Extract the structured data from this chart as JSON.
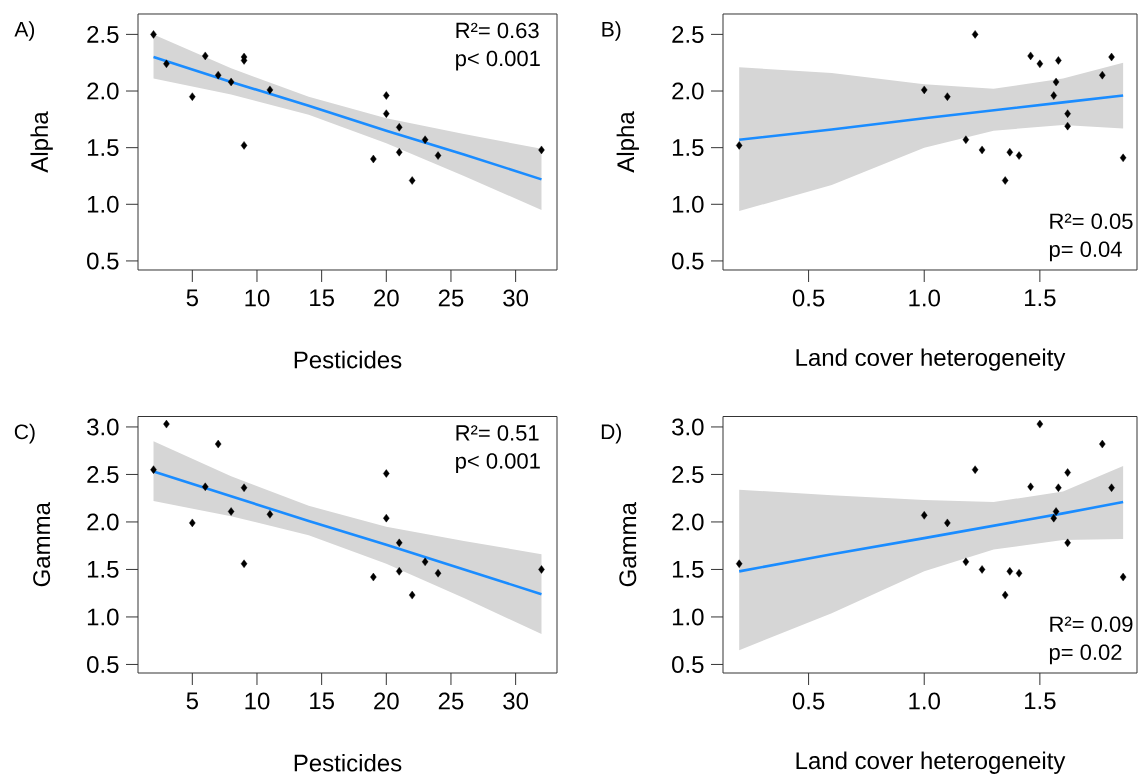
{
  "chart_data": [
    {
      "type": "scatter",
      "title": "A)",
      "xlabel": "Pesticides",
      "ylabel": "Alpha",
      "xlim": [
        0.8,
        33.2
      ],
      "ylim": [
        0.42,
        2.68
      ],
      "xticks": [
        5,
        10,
        15,
        20,
        25,
        30
      ],
      "yticks": [
        0.5,
        {
          "value": 1,
          "label": "1.0"
        },
        1.5,
        {
          "value": 2,
          "label": "2.0"
        },
        2.5
      ],
      "annotations": [
        "R²= 0.63",
        "p< 0.001"
      ],
      "series": [
        {
          "type": "line",
          "marker": "none",
          "color": "#1a8cff",
          "x": [
            2,
            8,
            14,
            20,
            26,
            32
          ],
          "values": [
            2.3,
            2.08,
            1.87,
            1.65,
            1.44,
            1.22
          ],
          "upper": [
            2.5,
            2.2,
            1.95,
            1.76,
            1.62,
            1.49
          ],
          "lower": [
            2.11,
            1.97,
            1.79,
            1.54,
            1.25,
            0.95
          ]
        },
        {
          "type": "scatter",
          "marker": "diamond",
          "color": "#000000",
          "x": [
            2,
            3,
            5,
            6,
            7,
            8,
            9,
            9,
            9,
            11,
            19,
            20,
            20,
            21,
            21,
            22,
            23,
            24,
            32
          ],
          "values": [
            2.5,
            2.24,
            1.95,
            2.31,
            2.14,
            2.08,
            2.3,
            2.27,
            1.52,
            2.01,
            1.4,
            1.96,
            1.8,
            1.68,
            1.46,
            1.21,
            1.57,
            1.43,
            1.48
          ]
        }
      ]
    },
    {
      "type": "scatter",
      "title": "B)",
      "xlabel": "Land cover heterogeneity",
      "ylabel": "Alpha",
      "xlim": [
        0.13,
        1.92
      ],
      "ylim": [
        0.42,
        2.68
      ],
      "xticks": [
        0.5,
        {
          "value": 1,
          "label": "1.0"
        },
        1.5
      ],
      "yticks": [
        0.5,
        {
          "value": 1,
          "label": "1.0"
        },
        1.5,
        {
          "value": 2,
          "label": "2.0"
        },
        2.5
      ],
      "annotations": [
        "R²= 0.05",
        "p= 0.04"
      ],
      "series": [
        {
          "type": "line",
          "marker": "none",
          "color": "#1a8cff",
          "x": [
            0.2,
            0.6,
            1.0,
            1.3,
            1.6,
            1.86
          ],
          "values": [
            1.57,
            1.66,
            1.76,
            1.83,
            1.9,
            1.96
          ],
          "upper": [
            2.21,
            2.16,
            2.06,
            2.02,
            2.11,
            2.25
          ],
          "lower": [
            0.94,
            1.17,
            1.5,
            1.65,
            1.7,
            1.67
          ]
        },
        {
          "type": "scatter",
          "marker": "diamond",
          "color": "#000000",
          "x": [
            0.2,
            1.0,
            1.1,
            1.18,
            1.22,
            1.25,
            1.35,
            1.37,
            1.41,
            1.46,
            1.5,
            1.56,
            1.57,
            1.58,
            1.62,
            1.62,
            1.77,
            1.81,
            1.86
          ],
          "values": [
            1.52,
            2.01,
            1.95,
            1.57,
            2.5,
            1.48,
            1.21,
            1.46,
            1.43,
            2.31,
            2.24,
            1.96,
            2.08,
            2.27,
            1.8,
            1.69,
            2.14,
            2.3,
            1.41
          ]
        }
      ]
    },
    {
      "type": "scatter",
      "title": "C)",
      "xlabel": "Pesticides",
      "ylabel": "Gamma",
      "xlim": [
        0.8,
        33.2
      ],
      "ylim": [
        0.41,
        3.11
      ],
      "xticks": [
        5,
        10,
        15,
        20,
        25,
        30
      ],
      "yticks": [
        0.5,
        {
          "value": 1,
          "label": "1.0"
        },
        1.5,
        {
          "value": 2,
          "label": "2.0"
        },
        2.5,
        {
          "value": 3,
          "label": "3.0"
        }
      ],
      "annotations": [
        "R²= 0.51",
        "p< 0.001"
      ],
      "series": [
        {
          "type": "line",
          "marker": "none",
          "color": "#1a8cff",
          "x": [
            2,
            8,
            14,
            20,
            26,
            32
          ],
          "values": [
            2.53,
            2.27,
            2.01,
            1.76,
            1.5,
            1.24
          ],
          "upper": [
            2.85,
            2.48,
            2.17,
            1.95,
            1.8,
            1.66
          ],
          "lower": [
            2.22,
            2.06,
            1.86,
            1.56,
            1.2,
            0.82
          ]
        },
        {
          "type": "scatter",
          "marker": "diamond",
          "color": "#000000",
          "x": [
            2,
            3,
            5,
            6,
            7,
            8,
            9,
            9,
            11,
            19,
            20,
            20,
            21,
            21,
            22,
            23,
            24,
            32
          ],
          "values": [
            2.55,
            3.03,
            1.99,
            2.37,
            2.82,
            2.11,
            2.36,
            1.56,
            2.08,
            1.42,
            2.51,
            2.04,
            1.78,
            1.48,
            1.23,
            1.58,
            1.46,
            1.5
          ]
        }
      ]
    },
    {
      "type": "scatter",
      "title": "D)",
      "xlabel": "Land cover heterogeneity",
      "ylabel": "Gamma",
      "xlim": [
        0.13,
        1.92
      ],
      "ylim": [
        0.41,
        3.11
      ],
      "xticks": [
        0.5,
        {
          "value": 1,
          "label": "1.0"
        },
        1.5
      ],
      "yticks": [
        0.5,
        {
          "value": 1,
          "label": "1.0"
        },
        1.5,
        {
          "value": 2,
          "label": "2.0"
        },
        2.5,
        {
          "value": 3,
          "label": "3.0"
        }
      ],
      "annotations": [
        "R²= 0.09",
        "p= 0.02"
      ],
      "series": [
        {
          "type": "line",
          "marker": "none",
          "color": "#1a8cff",
          "x": [
            0.2,
            0.6,
            1.0,
            1.3,
            1.6,
            1.86
          ],
          "values": [
            1.48,
            1.66,
            1.83,
            1.96,
            2.09,
            2.21
          ],
          "upper": [
            2.34,
            2.28,
            2.23,
            2.21,
            2.32,
            2.59
          ],
          "lower": [
            0.65,
            1.04,
            1.48,
            1.71,
            1.81,
            1.82
          ]
        },
        {
          "type": "scatter",
          "marker": "diamond",
          "color": "#000000",
          "x": [
            0.2,
            1.0,
            1.1,
            1.18,
            1.22,
            1.25,
            1.35,
            1.37,
            1.41,
            1.46,
            1.5,
            1.56,
            1.57,
            1.58,
            1.62,
            1.62,
            1.77,
            1.81,
            1.86
          ],
          "values": [
            1.56,
            2.07,
            1.99,
            1.58,
            2.55,
            1.5,
            1.23,
            1.48,
            1.46,
            2.37,
            3.03,
            2.04,
            2.11,
            2.36,
            2.52,
            1.78,
            2.82,
            2.36,
            1.42
          ]
        }
      ]
    }
  ]
}
